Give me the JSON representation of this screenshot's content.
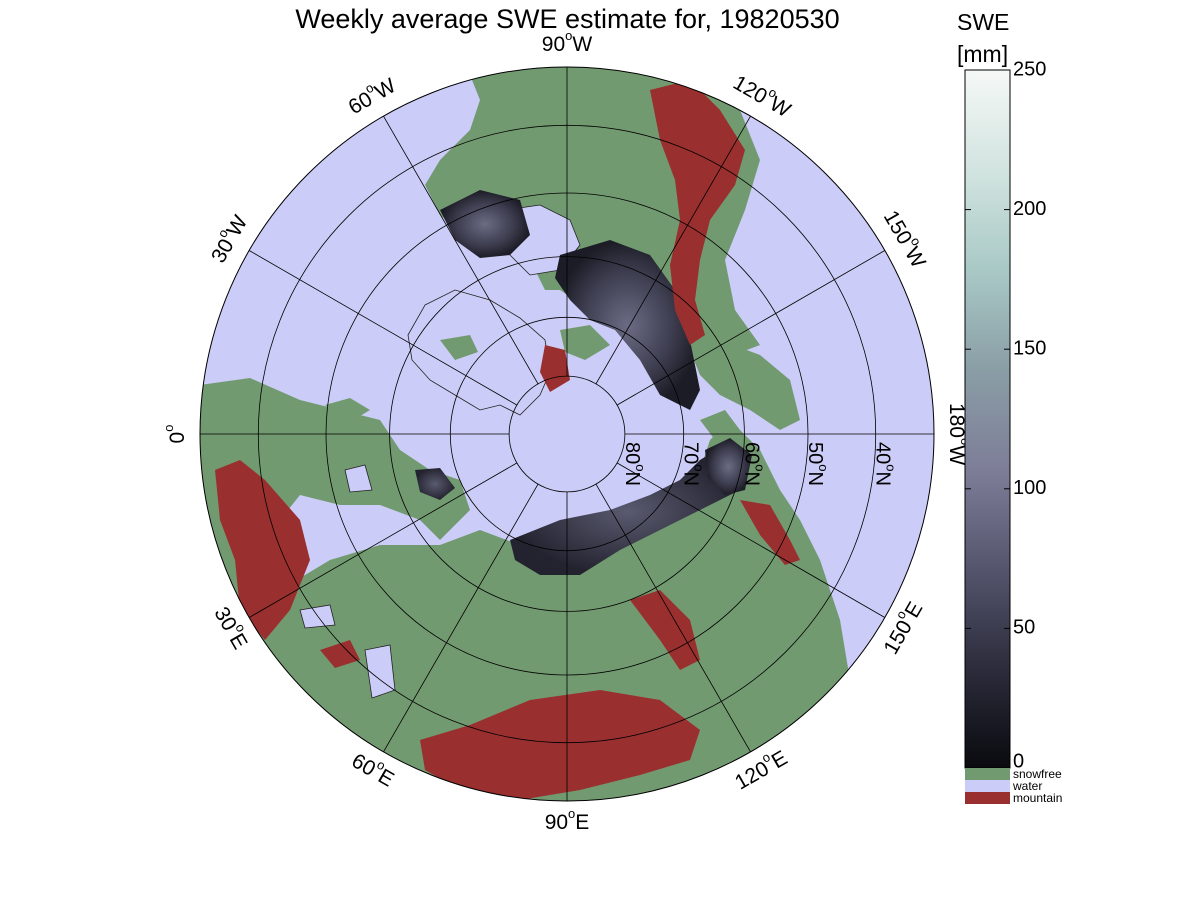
{
  "title": "Weekly average SWE estimate for, 19820530",
  "colorbar": {
    "title_line1": "SWE",
    "title_line2": "[mm]",
    "ticks": [
      "0",
      "50",
      "100",
      "150",
      "200",
      "250"
    ],
    "tick_values": [
      0,
      50,
      100,
      150,
      200,
      250
    ],
    "range": [
      0,
      250
    ],
    "gradient_colors": [
      "#0a0a0f",
      "#2c2c3c",
      "#55556e",
      "#7e7e98",
      "#8a9ea6",
      "#a9c9c6",
      "#d2e4e0",
      "#f5f8f6"
    ],
    "categories": [
      {
        "label": "snowfree",
        "color": "#729a70"
      },
      {
        "label": "water",
        "color": "#ccccf8"
      },
      {
        "label": "mountain",
        "color": "#9a2f2f"
      }
    ]
  },
  "map": {
    "projection": "north polar stereographic",
    "colors": {
      "water": "#ccccf8",
      "land": "#729a70",
      "mountain": "#9a2f2f",
      "snow_dark": "#23232e",
      "snow_mid": "#4e4e62",
      "grid": "#000000",
      "coast": "#222222"
    },
    "meridians": [
      {
        "lon_label": "90°W",
        "base": "90",
        "sup": "o",
        "hem": "W",
        "angle_deg": 0
      },
      {
        "lon_label": "120°W",
        "base": "120",
        "sup": "o",
        "hem": "W",
        "angle_deg": 30
      },
      {
        "lon_label": "150°W",
        "base": "150",
        "sup": "o",
        "hem": "W",
        "angle_deg": 60
      },
      {
        "lon_label": "180°W",
        "base": "180",
        "sup": "o",
        "hem": "W",
        "angle_deg": 90
      },
      {
        "lon_label": "150°E",
        "base": "150",
        "sup": "o",
        "hem": "E",
        "angle_deg": 120
      },
      {
        "lon_label": "120°E",
        "base": "120",
        "sup": "o",
        "hem": "E",
        "angle_deg": 150
      },
      {
        "lon_label": "90°E",
        "base": "90",
        "sup": "o",
        "hem": "E",
        "angle_deg": 180
      },
      {
        "lon_label": "60°E",
        "base": "60",
        "sup": "o",
        "hem": "E",
        "angle_deg": 210
      },
      {
        "lon_label": "30°E",
        "base": "30",
        "sup": "o",
        "hem": "E",
        "angle_deg": 240
      },
      {
        "lon_label": "0°",
        "base": "0",
        "sup": "o",
        "hem": "",
        "angle_deg": 270
      },
      {
        "lon_label": "30°W",
        "base": "30",
        "sup": "o",
        "hem": "W",
        "angle_deg": 300
      },
      {
        "lon_label": "60°W",
        "base": "60",
        "sup": "o",
        "hem": "W",
        "angle_deg": 330
      }
    ],
    "parallels": [
      {
        "lat_label": "80°N",
        "base": "80",
        "sup": "o",
        "hem": "N",
        "lat": 80
      },
      {
        "lat_label": "70°N",
        "base": "70",
        "sup": "o",
        "hem": "N",
        "lat": 70
      },
      {
        "lat_label": "60°N",
        "base": "60",
        "sup": "o",
        "hem": "N",
        "lat": 60
      },
      {
        "lat_label": "50°N",
        "base": "50",
        "sup": "o",
        "hem": "N",
        "lat": 50
      },
      {
        "lat_label": "40°N",
        "base": "40",
        "sup": "o",
        "hem": "N",
        "lat": 40
      }
    ],
    "outer_lat": 32
  }
}
